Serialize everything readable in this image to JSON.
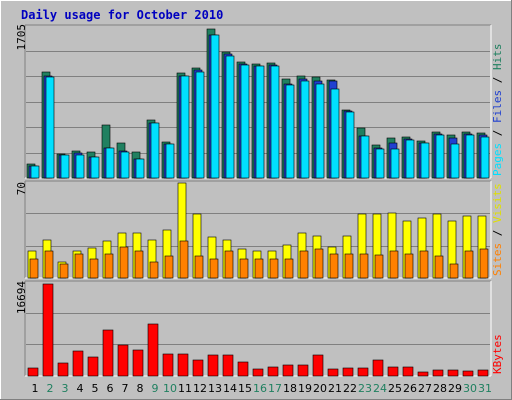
{
  "title": "Daily usage for October 2010",
  "panels": {
    "hits": {
      "max_label": "1705",
      "legend": [
        "Pages",
        "Files",
        "Hits"
      ]
    },
    "visits": {
      "max_label": "70",
      "legend": [
        "Sites",
        "Visits"
      ]
    },
    "kbytes": {
      "max_label": "16694",
      "legend": [
        "KBytes"
      ]
    }
  },
  "colors": {
    "background": "#c0c0c0",
    "border_light": "#ffffff",
    "border_dark": "#808080",
    "grid": "#808080",
    "title": "#0000c0",
    "hits": "#208060",
    "files": "#2040d0",
    "pages": "#00e0ff",
    "visits": "#ffff00",
    "sites": "#ff8000",
    "kbytes": "#ff0000",
    "weekday_label": "#000000",
    "weekend_label": "#208060"
  },
  "chart_data": {
    "type": "bar",
    "title": "Daily usage for October 2010",
    "categories": [
      "1",
      "2",
      "3",
      "4",
      "5",
      "6",
      "7",
      "8",
      "9",
      "10",
      "11",
      "12",
      "13",
      "14",
      "15",
      "16",
      "17",
      "18",
      "19",
      "20",
      "21",
      "22",
      "23",
      "24",
      "25",
      "26",
      "27",
      "28",
      "29",
      "30",
      "31"
    ],
    "weekend_days": [
      "2",
      "3",
      "9",
      "10",
      "16",
      "17",
      "23",
      "24",
      "30",
      "31"
    ],
    "panels": [
      {
        "name": "Pages / Files / Hits",
        "ymax": 1705,
        "series": [
          {
            "name": "Hits",
            "values": [
              160,
              1200,
              270,
              310,
              290,
              600,
              400,
              290,
              660,
              410,
              1180,
              1240,
              1680,
              1420,
              1310,
              1290,
              1300,
              1120,
              1150,
              1140,
              1110,
              770,
              560,
              370,
              450,
              460,
              420,
              520,
              490,
              520,
              510
            ]
          },
          {
            "name": "Files",
            "values": [
              140,
              1150,
              260,
              280,
              240,
              340,
              300,
              220,
              620,
              380,
              1150,
              1220,
              1620,
              1400,
              1290,
              1270,
              1280,
              1060,
              1120,
              1100,
              1090,
              760,
              470,
              340,
              400,
              440,
              400,
              500,
              450,
              500,
              480
            ]
          },
          {
            "name": "Pages",
            "values": [
              130,
              1140,
              260,
              260,
              240,
              340,
              290,
              210,
              620,
              380,
              1150,
              1200,
              1620,
              1380,
              1280,
              1260,
              1270,
              1050,
              1100,
              1060,
              1010,
              750,
              470,
              330,
              330,
              430,
              400,
              490,
              380,
              490,
              460
            ]
          }
        ]
      },
      {
        "name": "Sites / Visits",
        "ymax": 70,
        "series": [
          {
            "name": "Visits",
            "values": [
              20,
              28,
              12,
              20,
              22,
              27,
              33,
              33,
              28,
              35,
              70,
              47,
              30,
              28,
              21,
              20,
              20,
              24,
              33,
              31,
              23,
              31,
              47,
              47,
              48,
              42,
              44,
              47,
              42,
              46,
              46
            ]
          },
          {
            "name": "Sites",
            "values": [
              14,
              20,
              10,
              18,
              14,
              18,
              23,
              20,
              12,
              16,
              27,
              16,
              14,
              20,
              14,
              14,
              14,
              14,
              20,
              21,
              18,
              18,
              18,
              17,
              20,
              18,
              20,
              16,
              10,
              20,
              21
            ]
          }
        ]
      },
      {
        "name": "KBytes",
        "ymax": 16694,
        "series": [
          {
            "name": "KBytes",
            "values": [
              1500,
              16600,
              2300,
              4500,
              3500,
              8300,
              5600,
              4600,
              9300,
              3900,
              3900,
              2900,
              3800,
              3700,
              2600,
              1300,
              1700,
              1900,
              2000,
              3700,
              1200,
              1400,
              1400,
              2900,
              1600,
              1700,
              800,
              1100,
              1000,
              900,
              1000
            ]
          }
        ]
      }
    ]
  }
}
